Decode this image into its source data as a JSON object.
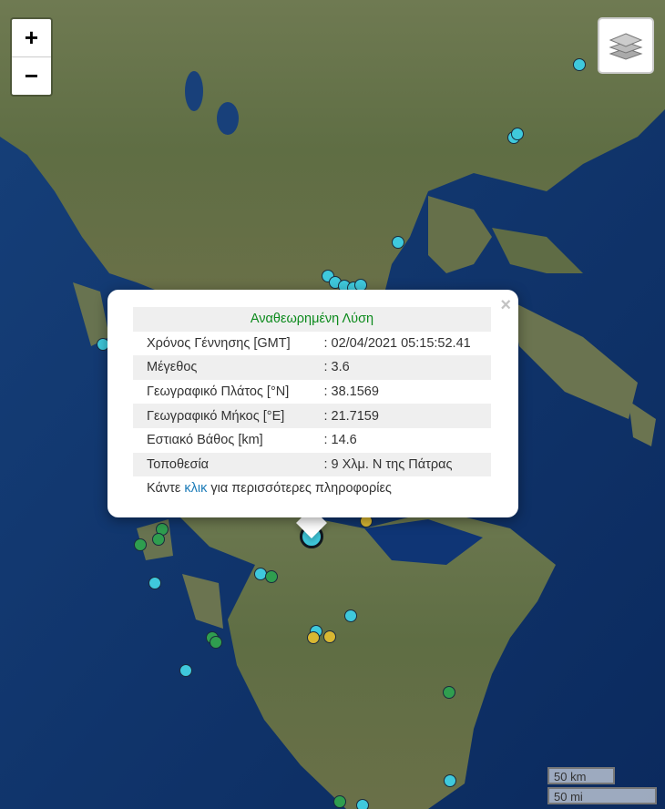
{
  "map_controls": {
    "zoom_in": "+",
    "zoom_out": "−",
    "layers_icon": "layers-icon"
  },
  "marker_colors": {
    "cyan": "#3fc9dc",
    "green": "#2f9e4f",
    "yellow": "#d8b732"
  },
  "popup": {
    "title": "Αναθεωρημένη Λύση",
    "close": "×",
    "rows": [
      {
        "label": "Χρόνος Γέννησης [GMT]",
        "value": ": 02/04/2021 05:15:52.41"
      },
      {
        "label": "Μέγεθος",
        "value": ": 3.6"
      },
      {
        "label": "Γεωγραφικό Πλάτος [°N]",
        "value": ": 38.1569"
      },
      {
        "label": "Γεωγραφικό Μήκος [°E]",
        "value": ": 21.7159"
      },
      {
        "label": "Εστιακό Βάθος [km]",
        "value": ": 14.6"
      },
      {
        "label": "Τοποθεσία",
        "value": ": 9 Χλμ. Ν της Πάτρας"
      }
    ],
    "more_prefix": "Κάντε ",
    "more_link": "κλικ",
    "more_suffix": " για περισσότερες πληροφορίες"
  },
  "scale": {
    "km": "50 km",
    "mi": "50 mi"
  }
}
